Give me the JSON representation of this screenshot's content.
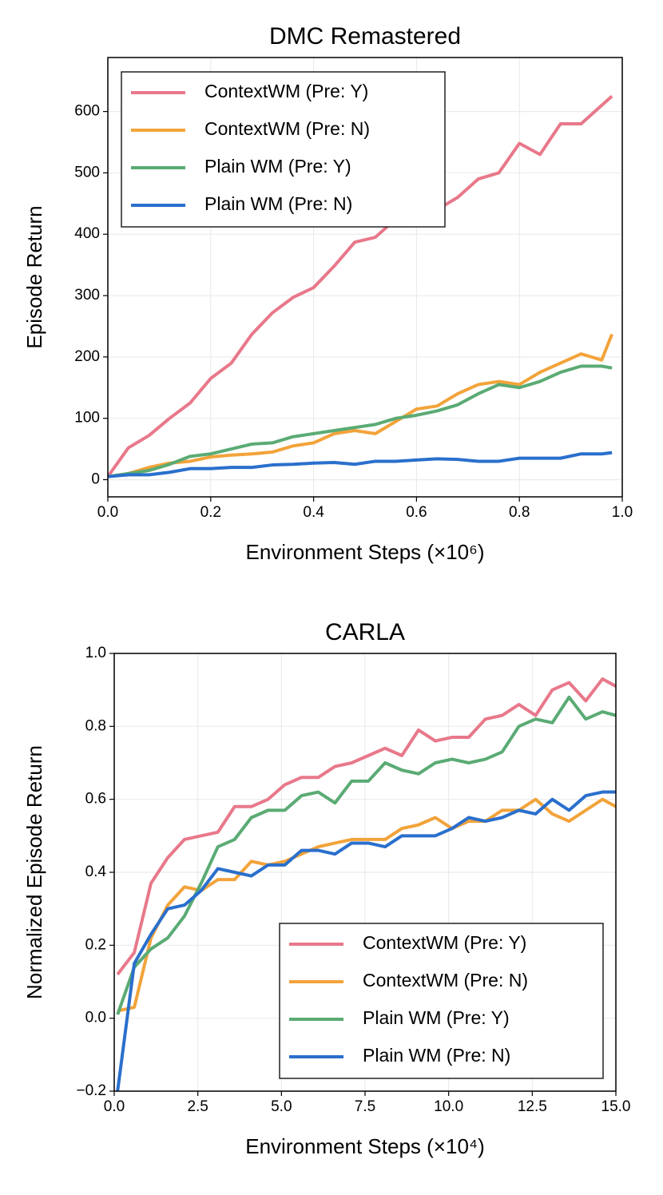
{
  "chart_data": [
    {
      "type": "line",
      "title": "DMC Remastered",
      "xlabel": "Environment Steps (×10⁶)",
      "ylabel": "Episode Return",
      "x": [
        0,
        0.04,
        0.08,
        0.12,
        0.16,
        0.2,
        0.24,
        0.28,
        0.32,
        0.36,
        0.4,
        0.44,
        0.48,
        0.52,
        0.56,
        0.6,
        0.64,
        0.68,
        0.72,
        0.76,
        0.8,
        0.84,
        0.88,
        0.92,
        0.96,
        0.98
      ],
      "series": [
        {
          "name": "ContextWM (Pre: Y)",
          "color": "#e8788a",
          "values": [
            5,
            52,
            72,
            100,
            125,
            165,
            190,
            237,
            272,
            297,
            313,
            348,
            387,
            395,
            425,
            420,
            440,
            460,
            490,
            500,
            548,
            530,
            580,
            580,
            610,
            625
          ]
        },
        {
          "name": "ContextWM (Pre: N)",
          "color": "#f2a33a",
          "values": [
            5,
            10,
            20,
            27,
            30,
            37,
            40,
            42,
            45,
            55,
            60,
            75,
            80,
            75,
            95,
            115,
            120,
            140,
            155,
            160,
            155,
            175,
            190,
            205,
            195,
            237
          ]
        },
        {
          "name": "Plain WM (Pre: Y)",
          "color": "#5aab74",
          "values": [
            5,
            10,
            15,
            25,
            38,
            42,
            50,
            58,
            60,
            70,
            75,
            80,
            85,
            90,
            100,
            105,
            112,
            122,
            140,
            155,
            150,
            160,
            175,
            185,
            185,
            182
          ]
        },
        {
          "name": "Plain WM (Pre: N)",
          "color": "#2a6fcc",
          "values": [
            5,
            8,
            8,
            12,
            18,
            18,
            20,
            20,
            24,
            25,
            27,
            28,
            25,
            30,
            30,
            32,
            34,
            33,
            30,
            30,
            35,
            35,
            35,
            42,
            42,
            44
          ]
        }
      ],
      "xlim": [
        0,
        1
      ],
      "xticks": [
        {
          "value": 0,
          "label": "0.0"
        },
        {
          "value": 0.2,
          "label": "0.2"
        },
        {
          "value": 0.4,
          "label": "0.4"
        },
        {
          "value": 0.6,
          "label": "0.6"
        },
        {
          "value": 0.8,
          "label": "0.8"
        },
        {
          "value": 1,
          "label": "1.0"
        }
      ],
      "ylim": [
        -28,
        688
      ],
      "yticks": [
        0,
        100,
        200,
        300,
        400,
        500,
        600
      ],
      "grid": true,
      "legend": "upper left"
    },
    {
      "type": "line",
      "title": "CARLA",
      "xlabel": "Environment Steps (×10⁴)",
      "ylabel": "Normalized Episode Return",
      "x": [
        0.1,
        0.6,
        1.1,
        1.6,
        2.1,
        2.6,
        3.1,
        3.6,
        4.1,
        4.6,
        5.1,
        5.6,
        6.1,
        6.6,
        7.1,
        7.6,
        8.1,
        8.6,
        9.1,
        9.6,
        10.1,
        10.6,
        11.1,
        11.6,
        12.1,
        12.6,
        13.1,
        13.6,
        14.1,
        14.6,
        15.0
      ],
      "series": [
        {
          "name": "ContextWM (Pre: Y)",
          "color": "#e8788a",
          "values": [
            0.12,
            0.18,
            0.37,
            0.44,
            0.49,
            0.5,
            0.51,
            0.58,
            0.58,
            0.6,
            0.64,
            0.66,
            0.66,
            0.69,
            0.7,
            0.72,
            0.74,
            0.72,
            0.79,
            0.76,
            0.77,
            0.77,
            0.82,
            0.83,
            0.86,
            0.83,
            0.9,
            0.92,
            0.87,
            0.93,
            0.91
          ]
        },
        {
          "name": "ContextWM (Pre: N)",
          "color": "#f2a33a",
          "values": [
            0.02,
            0.03,
            0.22,
            0.31,
            0.36,
            0.35,
            0.38,
            0.38,
            0.43,
            0.42,
            0.43,
            0.45,
            0.47,
            0.48,
            0.49,
            0.49,
            0.49,
            0.52,
            0.53,
            0.55,
            0.52,
            0.54,
            0.54,
            0.57,
            0.57,
            0.6,
            0.56,
            0.54,
            0.57,
            0.6,
            0.58
          ]
        },
        {
          "name": "Plain WM (Pre: Y)",
          "color": "#5aab74",
          "values": [
            0.01,
            0.14,
            0.19,
            0.22,
            0.28,
            0.37,
            0.47,
            0.49,
            0.55,
            0.57,
            0.57,
            0.61,
            0.62,
            0.59,
            0.65,
            0.65,
            0.7,
            0.68,
            0.67,
            0.7,
            0.71,
            0.7,
            0.71,
            0.73,
            0.8,
            0.82,
            0.81,
            0.88,
            0.82,
            0.84,
            0.83
          ]
        },
        {
          "name": "Plain WM (Pre: N)",
          "color": "#2a6fcc",
          "values": [
            -0.2,
            0.15,
            0.23,
            0.3,
            0.31,
            0.35,
            0.41,
            0.4,
            0.39,
            0.42,
            0.42,
            0.46,
            0.46,
            0.45,
            0.48,
            0.48,
            0.47,
            0.5,
            0.5,
            0.5,
            0.52,
            0.55,
            0.54,
            0.55,
            0.57,
            0.56,
            0.6,
            0.57,
            0.61,
            0.62,
            0.62
          ]
        }
      ],
      "xlim": [
        0,
        15
      ],
      "xticks": [
        {
          "value": 0,
          "label": "0.0"
        },
        {
          "value": 2.5,
          "label": "2.5"
        },
        {
          "value": 5,
          "label": "5.0"
        },
        {
          "value": 7.5,
          "label": "7.5"
        },
        {
          "value": 10,
          "label": "10.0"
        },
        {
          "value": 12.5,
          "label": "12.5"
        },
        {
          "value": 15,
          "label": "15.0"
        }
      ],
      "ylim": [
        -0.2,
        1.0
      ],
      "yticks": [
        {
          "value": -0.2,
          "label": "−0.2"
        },
        {
          "value": 0,
          "label": "0.0"
        },
        0.2,
        0.4,
        0.6,
        0.8,
        {
          "value": 1,
          "label": "1.0"
        }
      ],
      "grid": true,
      "legend": "lower right"
    }
  ]
}
